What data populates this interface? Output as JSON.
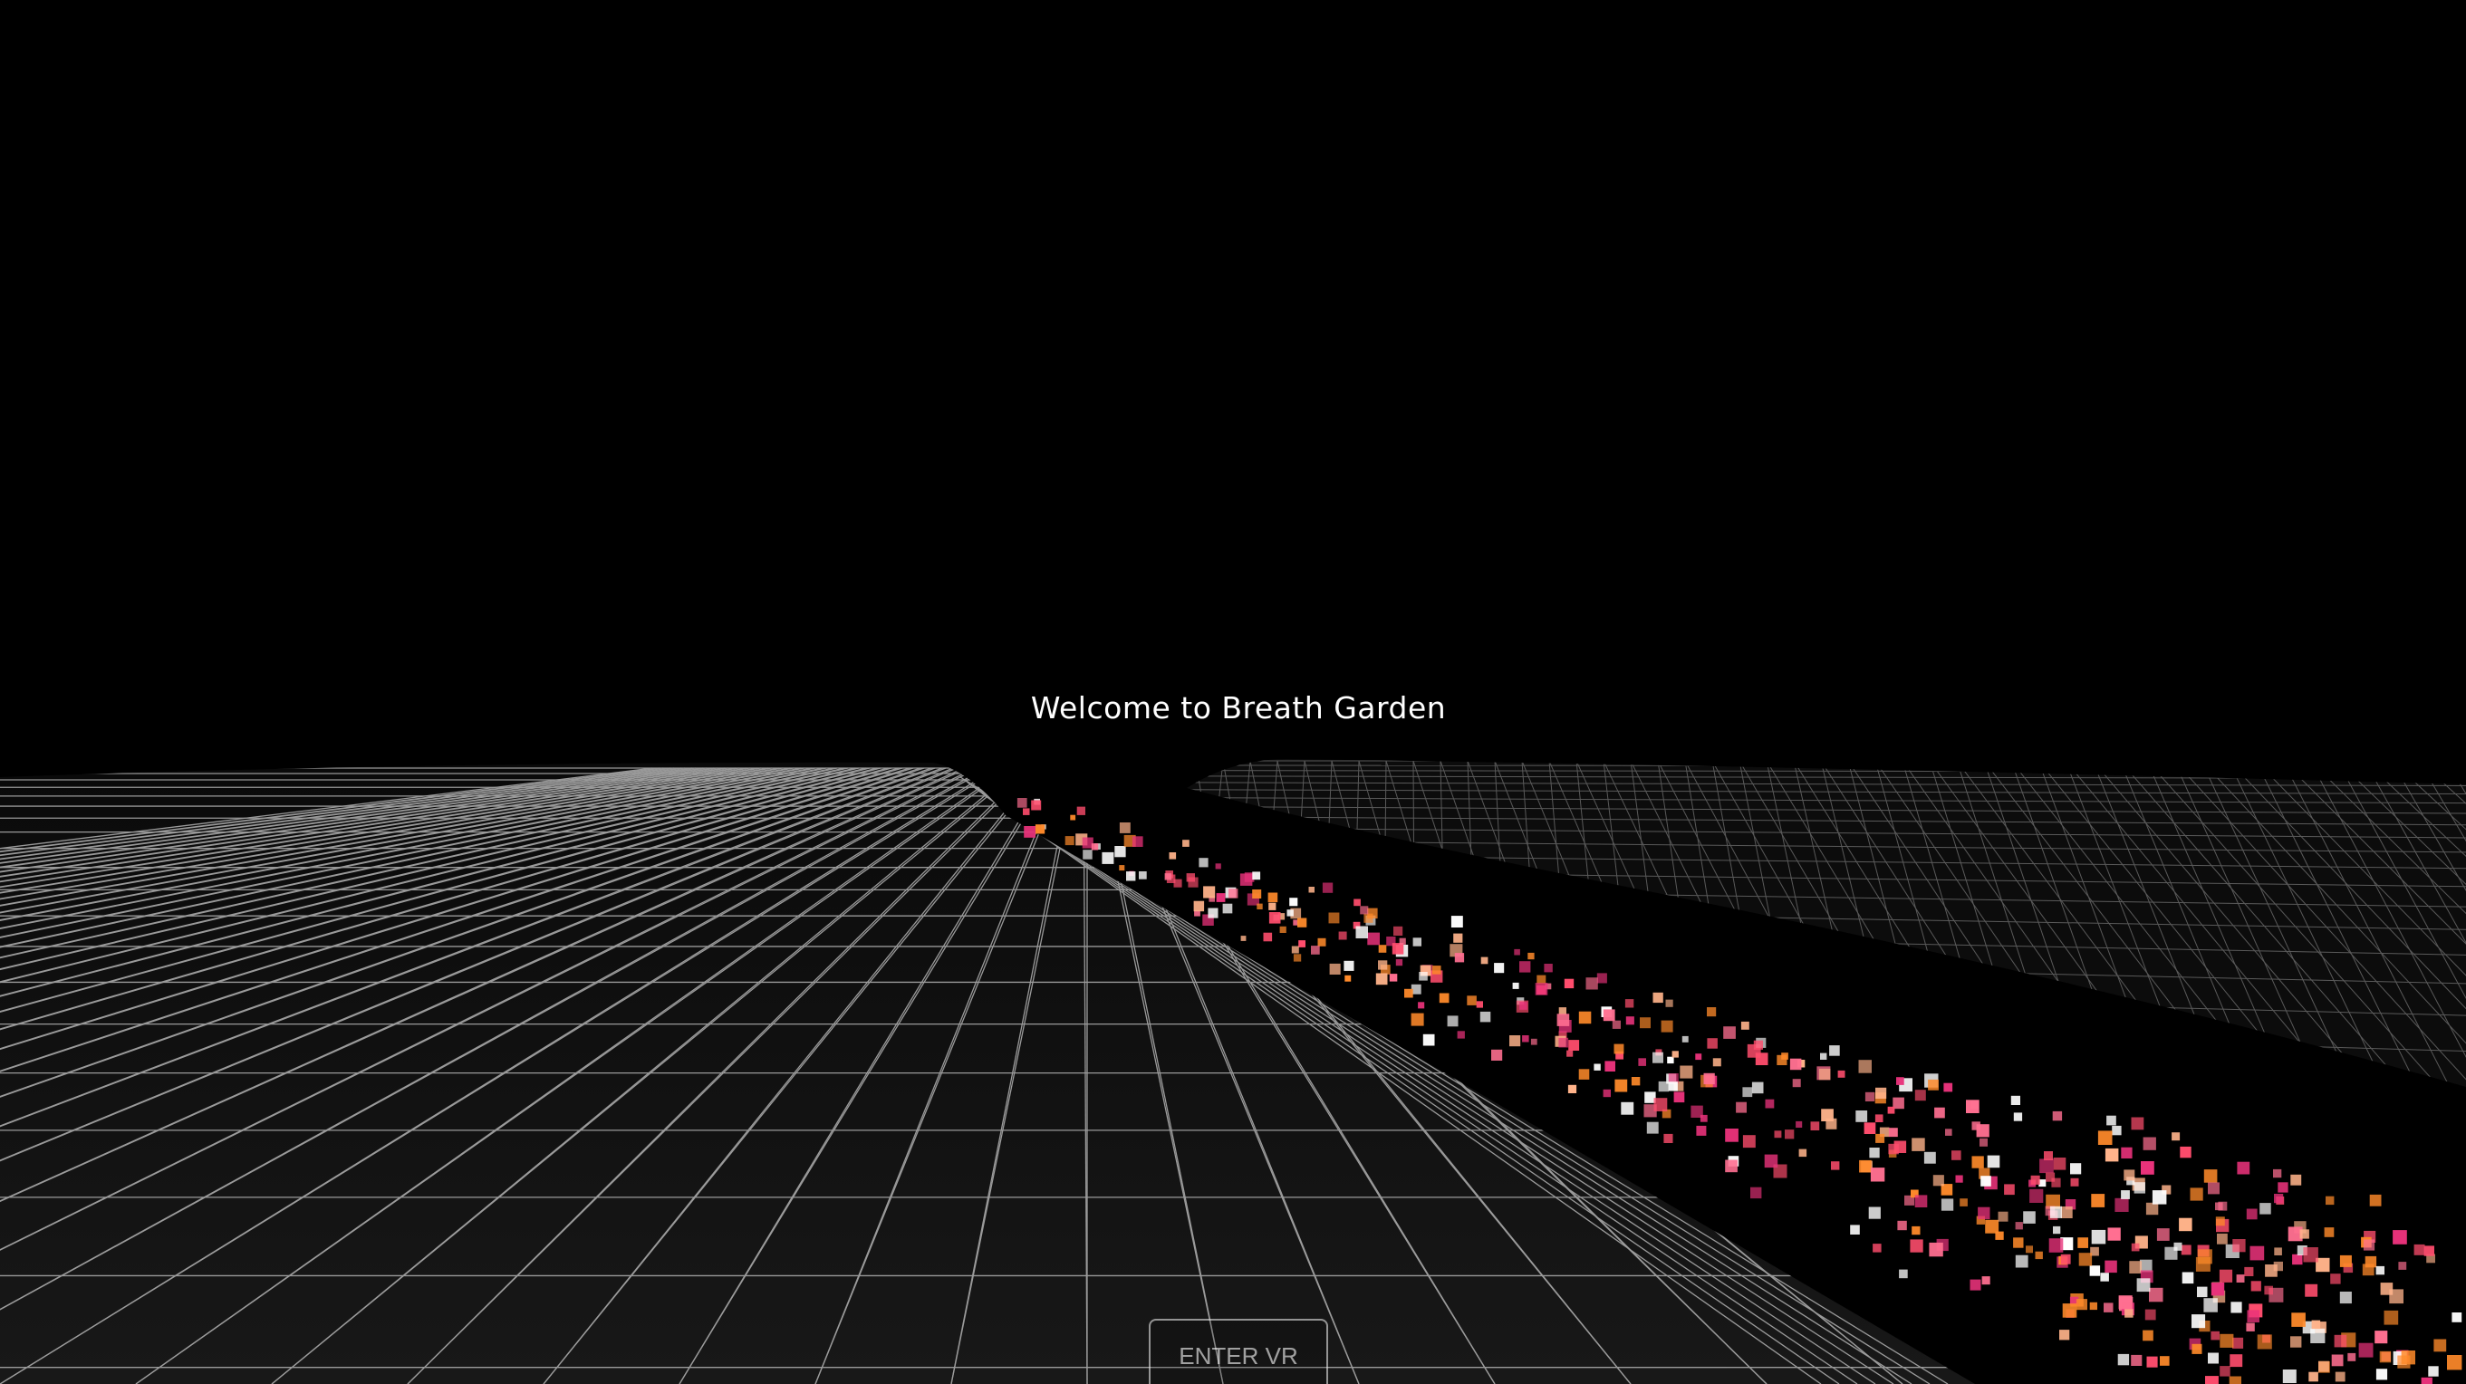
{
  "scene": {
    "welcome_message": "Welcome to Breath Garden",
    "background_color": "#000000",
    "terrain_line_color": "#c8c8c8",
    "terrain_fill_color": "#161616",
    "particle_colors": [
      "#ff8a2a",
      "#ff6f91",
      "#ff4d6d",
      "#ffb38a",
      "#ffffff",
      "#e8327a"
    ]
  },
  "controls": {
    "enter_vr_label": "ENTER VR"
  }
}
